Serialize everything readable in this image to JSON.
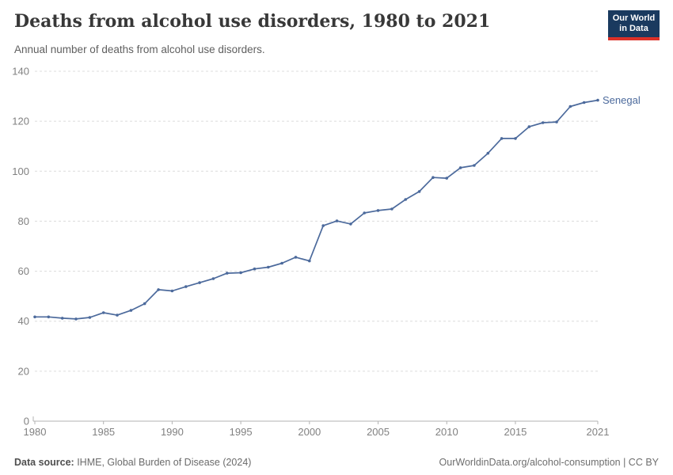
{
  "header": {
    "title": "Deaths from alcohol use disorders, 1980 to 2021",
    "subtitle": "Annual number of deaths from alcohol use disorders.",
    "logo_line1": "Our World",
    "logo_line2": "in Data",
    "logo_bg_color": "#1a3a5f",
    "logo_accent_color": "#dc3128"
  },
  "chart_data": {
    "type": "line",
    "title": "Deaths from alcohol use disorders, 1980 to 2021",
    "subtitle": "Annual number of deaths from alcohol use disorders.",
    "xlabel": "",
    "ylabel": "",
    "xlim": [
      1980,
      2021
    ],
    "ylim": [
      0,
      140
    ],
    "x_ticks": [
      1980,
      1985,
      1990,
      1995,
      2000,
      2005,
      2010,
      2015,
      2021
    ],
    "y_ticks": [
      0,
      20,
      40,
      60,
      80,
      100,
      120,
      140
    ],
    "grid": "horizontal-dashed",
    "legend_position": "end-of-line-label",
    "x": [
      1980,
      1981,
      1982,
      1983,
      1984,
      1985,
      1986,
      1987,
      1988,
      1989,
      1990,
      1991,
      1992,
      1993,
      1994,
      1995,
      1996,
      1997,
      1998,
      1999,
      2000,
      2001,
      2002,
      2003,
      2004,
      2005,
      2006,
      2007,
      2008,
      2009,
      2010,
      2011,
      2012,
      2013,
      2014,
      2015,
      2016,
      2017,
      2018,
      2019,
      2020,
      2021
    ],
    "series": [
      {
        "name": "Senegal",
        "color": "#4c6a9c",
        "values": [
          41.7,
          41.7,
          41.2,
          40.9,
          41.5,
          43.4,
          42.4,
          44.3,
          47.0,
          52.6,
          52.1,
          53.8,
          55.4,
          57.0,
          59.2,
          59.4,
          60.9,
          61.6,
          63.2,
          65.6,
          64.1,
          78.2,
          80.1,
          78.9,
          83.3,
          84.3,
          84.9,
          88.7,
          91.9,
          97.5,
          97.2,
          101.4,
          102.3,
          107.2,
          113.1,
          113.1,
          117.8,
          119.4,
          119.7,
          125.9,
          127.5,
          128.4
        ]
      }
    ]
  },
  "footer": {
    "data_source_label": "Data source:",
    "data_source_value": " IHME, Global Burden of Disease (2024)",
    "link_text": "OurWorldinData.org/alcohol-consumption | CC BY"
  },
  "colors": {
    "gridline": "#dcdcdc",
    "axis": "#b3b3b3",
    "tick_text": "#818181"
  }
}
